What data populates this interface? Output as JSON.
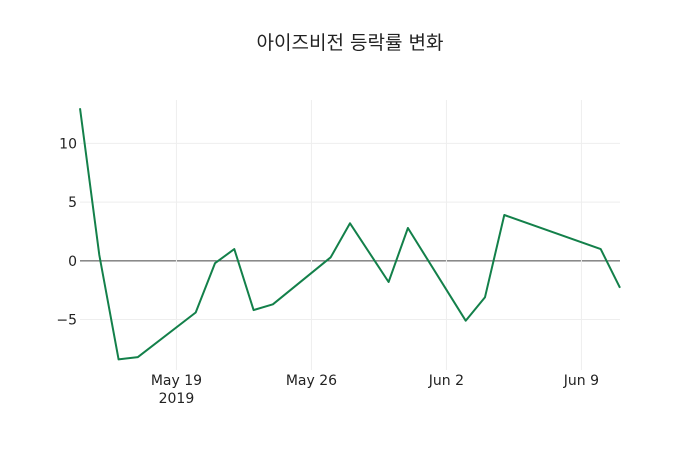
{
  "chart_data": {
    "type": "line",
    "title": "아이즈비전 등락률 변화",
    "xlabel": "",
    "ylabel": "",
    "x": [
      "2019-05-14",
      "2019-05-15",
      "2019-05-16",
      "2019-05-17",
      "2019-05-20",
      "2019-05-21",
      "2019-05-22",
      "2019-05-23",
      "2019-05-24",
      "2019-05-27",
      "2019-05-28",
      "2019-05-30",
      "2019-05-31",
      "2019-06-03",
      "2019-06-04",
      "2019-06-05",
      "2019-06-10",
      "2019-06-11"
    ],
    "series": [
      {
        "name": "등락률",
        "color": "#13804a",
        "values": [
          13.0,
          0.5,
          -8.4,
          -8.2,
          -4.4,
          -0.2,
          1.0,
          -4.2,
          -3.7,
          0.3,
          3.2,
          -1.8,
          2.8,
          -5.1,
          -3.1,
          3.9,
          1.0,
          -2.3
        ]
      }
    ],
    "xlim": [
      "2019-05-14",
      "2019-06-11"
    ],
    "ylim": [
      -9.3,
      13.7
    ],
    "yticks": [
      10,
      5,
      0,
      -5
    ],
    "ytick_labels": [
      "10",
      "5",
      "0",
      "−5"
    ],
    "xticks": [
      "2019-05-19",
      "2019-05-26",
      "2019-06-02",
      "2019-06-09"
    ],
    "xtick_labels": [
      "May 19",
      "May 26",
      "Jun 2",
      "Jun 9"
    ],
    "xtick_sublabel": "2019",
    "grid": true,
    "legend": "none"
  }
}
